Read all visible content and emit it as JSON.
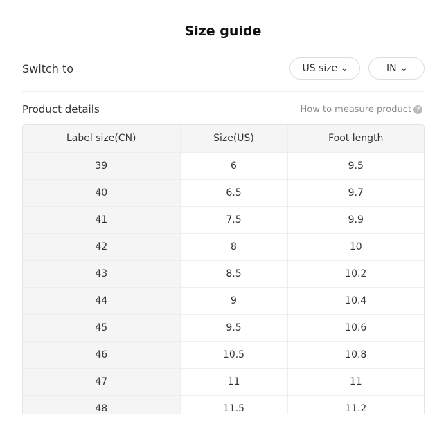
{
  "title": "Size guide",
  "switch": {
    "label": "Switch to",
    "size_select": "US size",
    "unit_select": "IN"
  },
  "section": {
    "label": "Product details",
    "how_to": "How to measure product",
    "help_icon": "?"
  },
  "table": {
    "headers": [
      "Label size(CN)",
      "Size(US)",
      "Foot length"
    ],
    "rows": [
      [
        "39",
        "6",
        "9.5"
      ],
      [
        "40",
        "6.5",
        "9.7"
      ],
      [
        "41",
        "7.5",
        "9.9"
      ],
      [
        "42",
        "8",
        "10"
      ],
      [
        "43",
        "8.5",
        "10.2"
      ],
      [
        "44",
        "9",
        "10.4"
      ],
      [
        "45",
        "9.5",
        "10.6"
      ],
      [
        "46",
        "10.5",
        "10.8"
      ],
      [
        "47",
        "11",
        "11"
      ],
      [
        "48",
        "11.5",
        "11.2"
      ]
    ]
  }
}
